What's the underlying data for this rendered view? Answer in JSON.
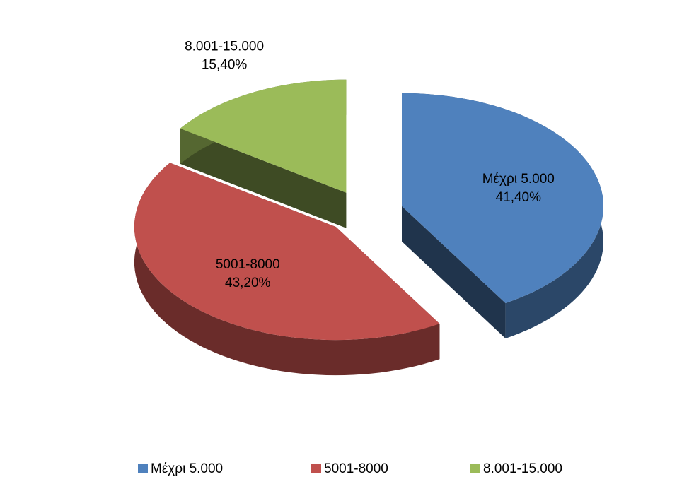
{
  "chart_data": {
    "type": "pie3d",
    "categories": [
      "Μέχρι 5.000",
      "5001-8000",
      "8.001-15.000"
    ],
    "values": [
      41.4,
      43.2,
      15.4
    ],
    "value_labels": [
      "41,40%",
      "43,20%",
      "15,40%"
    ],
    "colors": [
      "#4f81bd",
      "#c0504d",
      "#9bbb59"
    ],
    "legend": "bottom"
  }
}
